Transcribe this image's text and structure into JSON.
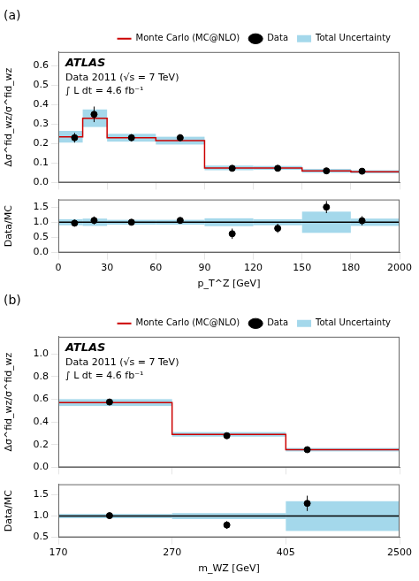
{
  "chart_data": [
    {
      "type": "histogram",
      "title": "(a)",
      "annotations": [
        "ATLAS",
        "Data 2011 (√s = 7 TeV)",
        "∫ L dt = 4.6 fb⁻¹"
      ],
      "ylabel": "Δσ^fid_wz/σ^fid_wz",
      "bins": [
        0,
        15,
        30,
        60,
        90,
        120,
        150,
        180,
        2000
      ],
      "series": [
        {
          "name": "Monte Carlo (MC@NLO)",
          "type": "step",
          "color": "#cc0000",
          "values": [
            0.235,
            0.33,
            0.23,
            0.215,
            0.075,
            0.075,
            0.06,
            0.055
          ],
          "uncertainty": {
            "name": "Total Uncertainty",
            "color": "#7ec8e3",
            "lo": [
              0.03,
              0.045,
              0.02,
              0.02,
              0.012,
              0.01,
              0.01,
              0.008
            ],
            "hi": [
              0.03,
              0.045,
              0.02,
              0.02,
              0.012,
              0.01,
              0.01,
              0.008
            ]
          }
        },
        {
          "name": "Data",
          "type": "scatter",
          "marker": "circle",
          "color": "#000000",
          "x": [
            10,
            22,
            45,
            75,
            107,
            135,
            165,
            600
          ],
          "values": [
            0.23,
            0.35,
            0.23,
            0.23,
            0.073,
            0.073,
            0.06,
            0.058
          ],
          "error_lo": [
            0.025,
            0.04,
            0.018,
            0.018,
            0.013,
            0.01,
            0.01,
            0.01
          ],
          "error_hi": [
            0.025,
            0.04,
            0.018,
            0.018,
            0.013,
            0.01,
            0.01,
            0.01
          ]
        }
      ],
      "xlim": [
        0,
        2000
      ],
      "xticks": [
        0,
        30,
        60,
        90,
        120,
        150,
        180,
        2000
      ],
      "ylim": [
        0,
        0.67
      ],
      "yticks": [
        {
          "value": 0,
          "label": "0.0"
        },
        0.1,
        0.2,
        0.3,
        0.4,
        0.5,
        0.6
      ],
      "grid": false,
      "legend": "upper right",
      "tick_labels": "y"
    },
    {
      "type": "histogram",
      "xlabel": "p_T^Z [GeV]",
      "ylabel": "Data/MC",
      "bins": [
        0,
        15,
        30,
        60,
        90,
        120,
        150,
        180,
        2000
      ],
      "series": [
        {
          "type": "step",
          "color": "#000000",
          "values": [
            1.0,
            1.0,
            1.0,
            1.0,
            1.0,
            1.0,
            1.0,
            1.0
          ],
          "uncertainty": {
            "color": "#7ec8e3",
            "lo": [
              0.1,
              0.12,
              0.08,
              0.08,
              0.13,
              0.1,
              0.35,
              0.12
            ],
            "hi": [
              0.1,
              0.12,
              0.08,
              0.08,
              0.13,
              0.1,
              0.35,
              0.12
            ]
          }
        },
        {
          "type": "scatter",
          "marker": "circle",
          "color": "#000000",
          "x": [
            10,
            22,
            45,
            75,
            107,
            135,
            165,
            600
          ],
          "values": [
            0.97,
            1.06,
            1.0,
            1.06,
            0.62,
            0.8,
            1.5,
            1.05
          ],
          "error_lo": [
            0.11,
            0.13,
            0.09,
            0.09,
            0.17,
            0.15,
            0.2,
            0.15
          ],
          "error_hi": [
            0.11,
            0.13,
            0.09,
            0.09,
            0.17,
            0.15,
            0.2,
            0.15
          ]
        }
      ],
      "xlim": [
        0,
        2000
      ],
      "xticks": [
        0,
        30,
        60,
        90,
        120,
        150,
        180,
        2000
      ],
      "ylim": [
        0,
        1.75
      ],
      "yticks": [
        {
          "value": 0,
          "label": "0.0"
        },
        0.5,
        {
          "value": 1,
          "label": "1.0"
        },
        1.5
      ],
      "grid": false
    },
    {
      "type": "histogram",
      "title": "(b)",
      "annotations": [
        "ATLAS",
        "Data 2011 (√s = 7 TeV)",
        "∫ L dt = 4.6 fb⁻¹"
      ],
      "ylabel": "Δσ^fid_wz/σ^fid_wz",
      "bins": [
        170,
        270,
        405,
        2500
      ],
      "series": [
        {
          "name": "Monte Carlo (MC@NLO)",
          "type": "step",
          "color": "#cc0000",
          "values": [
            0.57,
            0.29,
            0.155
          ],
          "uncertainty": {
            "name": "Total Uncertainty",
            "color": "#7ec8e3",
            "lo": [
              0.03,
              0.02,
              0.015
            ],
            "hi": [
              0.03,
              0.02,
              0.015
            ]
          }
        },
        {
          "name": "Data",
          "type": "scatter",
          "marker": "circle",
          "color": "#000000",
          "x": [
            215,
            335,
            800
          ],
          "values": [
            0.575,
            0.278,
            0.155
          ],
          "error_lo": [
            0.022,
            0.018,
            0.015
          ],
          "error_hi": [
            0.022,
            0.018,
            0.015
          ]
        }
      ],
      "xlim": [
        170,
        2500
      ],
      "xticks": [
        170,
        270,
        405,
        2500
      ],
      "ylim": [
        0,
        1.15
      ],
      "yticks": [
        {
          "value": 0,
          "label": "0.0"
        },
        0.2,
        0.4,
        0.6,
        0.8,
        {
          "value": 1,
          "label": "1.0"
        }
      ],
      "grid": false,
      "legend": "upper right",
      "tick_labels": "y"
    },
    {
      "type": "histogram",
      "xlabel": "m_WZ [GeV]",
      "ylabel": "Data/MC",
      "bins": [
        170,
        270,
        405,
        2500
      ],
      "series": [
        {
          "type": "step",
          "color": "#000000",
          "values": [
            1.0,
            1.0,
            1.0
          ],
          "uncertainty": {
            "color": "#7ec8e3",
            "lo": [
              0.05,
              0.07,
              0.35
            ],
            "hi": [
              0.05,
              0.07,
              0.35
            ]
          }
        },
        {
          "type": "scatter",
          "marker": "circle",
          "color": "#000000",
          "x": [
            215,
            335,
            800
          ],
          "values": [
            1.01,
            0.79,
            1.3
          ],
          "error_lo": [
            0.06,
            0.09,
            0.18
          ],
          "error_hi": [
            0.06,
            0.09,
            0.18
          ]
        }
      ],
      "xlim": [
        170,
        2500
      ],
      "xticks": [
        170,
        270,
        405,
        2500
      ],
      "ylim": [
        0.5,
        1.75
      ],
      "yticks": [
        0.5,
        {
          "value": 1,
          "label": "1.0"
        },
        1.5
      ],
      "grid": false
    }
  ]
}
